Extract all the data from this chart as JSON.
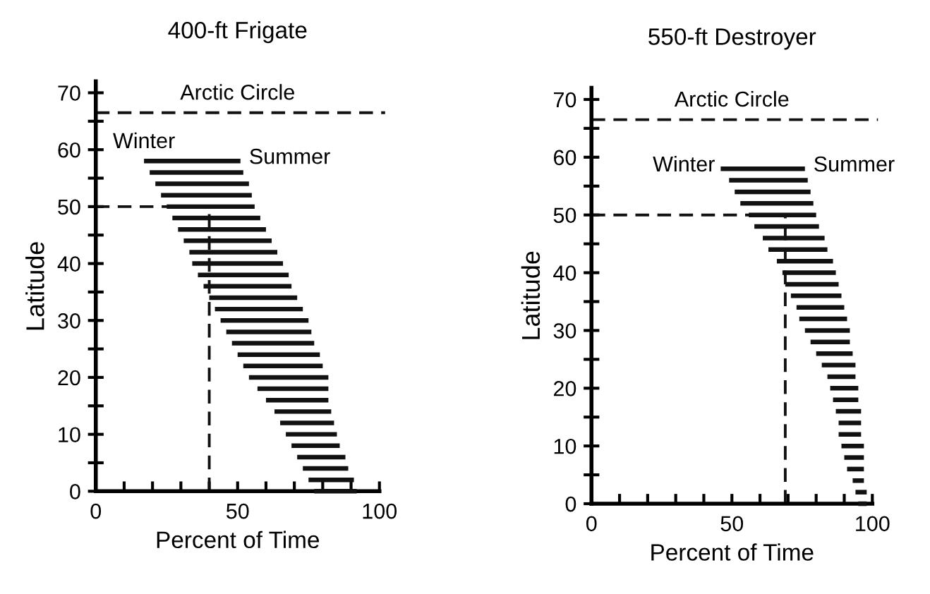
{
  "chart_data": [
    {
      "type": "bar",
      "orientation": "horizontal",
      "title": "400-ft Frigate",
      "xlabel": "Percent of Time",
      "ylabel": "Latitude",
      "x": [
        0,
        2,
        4,
        6,
        8,
        10,
        12,
        14,
        16,
        18,
        20,
        22,
        24,
        26,
        28,
        30,
        32,
        34,
        36,
        38,
        40,
        42,
        44,
        46,
        48,
        50,
        52,
        54,
        56,
        58
      ],
      "base": [
        77,
        75,
        73,
        71,
        69,
        67,
        65,
        63,
        60,
        57,
        54,
        52,
        50,
        48,
        46,
        44,
        42,
        40,
        38,
        36,
        34,
        33,
        31,
        29,
        27,
        25,
        23,
        21,
        19,
        17
      ],
      "values": [
        15,
        16,
        16,
        17,
        17,
        18,
        19,
        20,
        22,
        25,
        28,
        28,
        29,
        29,
        30,
        31,
        31,
        31,
        31,
        32,
        32,
        31,
        31,
        31,
        31,
        31,
        32,
        33,
        33,
        34
      ],
      "color": "#111111",
      "ref_lines": [
        {
          "axis": "y",
          "value": 66.5,
          "label": "Arctic Circle",
          "line_style": "dashed",
          "color": "#111111"
        },
        {
          "axis": "y",
          "value": 50,
          "line_style": "dashed",
          "color": "#111111"
        },
        {
          "axis": "x",
          "value": 40,
          "line_style": "dashed",
          "color": "#111111"
        }
      ],
      "annotations": [
        "Winter",
        "Summer"
      ],
      "xlim": [
        0,
        100
      ],
      "ylim": [
        0,
        72
      ],
      "xticks": [
        0,
        {
          "value": 10,
          "label": null
        },
        {
          "value": 20,
          "label": null
        },
        {
          "value": 30,
          "label": null
        },
        {
          "value": 40,
          "label": null
        },
        50,
        {
          "value": 60,
          "label": null
        },
        {
          "value": 70,
          "label": null
        },
        {
          "value": 80,
          "label": null
        },
        {
          "value": 90,
          "label": null
        },
        100
      ],
      "yticks": [
        0,
        {
          "value": 5,
          "label": null
        },
        10,
        {
          "value": 15,
          "label": null
        },
        20,
        {
          "value": 25,
          "label": null
        },
        30,
        {
          "value": 35,
          "label": null
        },
        40,
        {
          "value": 45,
          "label": null
        },
        50,
        {
          "value": 55,
          "label": null
        },
        60,
        {
          "value": 65,
          "label": null
        },
        70
      ],
      "grid": false,
      "legend": false
    },
    {
      "type": "bar",
      "orientation": "horizontal",
      "title": "550-ft Destroyer",
      "xlabel": "Percent of Time",
      "ylabel": "Latitude",
      "x": [
        0,
        2,
        4,
        6,
        8,
        10,
        12,
        14,
        16,
        18,
        20,
        22,
        24,
        26,
        28,
        30,
        32,
        34,
        36,
        38,
        40,
        42,
        44,
        46,
        48,
        50,
        52,
        54,
        56,
        58
      ],
      "base": [
        95,
        94,
        93,
        91,
        90,
        89,
        88,
        88,
        87,
        86,
        85,
        84,
        82,
        80,
        78,
        76,
        74,
        73,
        71,
        69,
        68,
        66,
        63,
        61,
        58,
        56,
        53,
        51,
        49,
        46
      ],
      "values": [
        3,
        4,
        4,
        6,
        7,
        8,
        8,
        8,
        9,
        9,
        10,
        10,
        12,
        13,
        14,
        16,
        17,
        17,
        18,
        19,
        19,
        20,
        21,
        22,
        23,
        24,
        26,
        27,
        28,
        30
      ],
      "color": "#111111",
      "ref_lines": [
        {
          "axis": "y",
          "value": 66.5,
          "label": "Arctic Circle",
          "line_style": "dashed",
          "color": "#111111"
        },
        {
          "axis": "y",
          "value": 50,
          "line_style": "dashed",
          "color": "#111111"
        },
        {
          "axis": "x",
          "value": 69,
          "line_style": "dashed",
          "color": "#111111"
        }
      ],
      "annotations": [
        "Winter",
        "Summer"
      ],
      "xlim": [
        0,
        100
      ],
      "ylim": [
        0,
        72
      ],
      "xticks": [
        0,
        {
          "value": 10,
          "label": null
        },
        {
          "value": 20,
          "label": null
        },
        {
          "value": 30,
          "label": null
        },
        {
          "value": 40,
          "label": null
        },
        50,
        {
          "value": 60,
          "label": null
        },
        {
          "value": 70,
          "label": null
        },
        {
          "value": 80,
          "label": null
        },
        {
          "value": 90,
          "label": null
        },
        100
      ],
      "yticks": [
        0,
        {
          "value": 5,
          "label": null
        },
        10,
        {
          "value": 15,
          "label": null
        },
        20,
        {
          "value": 25,
          "label": null
        },
        30,
        {
          "value": 35,
          "label": null
        },
        40,
        {
          "value": 45,
          "label": null
        },
        50,
        {
          "value": 55,
          "label": null
        },
        60,
        {
          "value": 65,
          "label": null
        },
        70
      ],
      "grid": false,
      "legend": false
    }
  ]
}
